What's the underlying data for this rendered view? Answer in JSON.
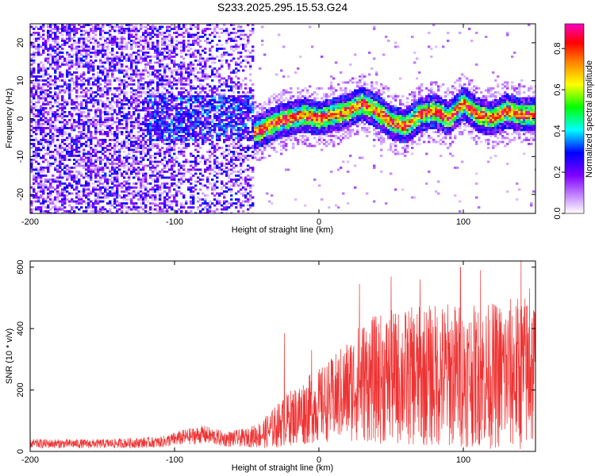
{
  "title": "S233.2025.295.15.53.G24",
  "chart_data": [
    {
      "type": "heatmap",
      "xlabel": "Height of straight line (km)",
      "ylabel": "Frequency (Hz)",
      "xlim": [
        -200,
        150
      ],
      "ylim": [
        -25,
        25
      ],
      "xticks": [
        "-200",
        "-100",
        "0",
        "100"
      ],
      "yticks": [
        "-20",
        "-10",
        "0",
        "10",
        "20"
      ],
      "colorbar": {
        "label": "Normalized spectral amplitude",
        "range": [
          0,
          0.92
        ],
        "ticks": [
          "0.0",
          "0.2",
          "0.4",
          "0.6",
          "0.8"
        ],
        "colormap": [
          "#ffffff",
          "#cc99ff",
          "#8000ff",
          "#0000ff",
          "#00ffff",
          "#00ff00",
          "#ffff00",
          "#ff8000",
          "#ff0000",
          "#ff00c0"
        ]
      },
      "ridge_trace": {
        "x": [
          -48,
          -40,
          -30,
          -20,
          -10,
          0,
          10,
          20,
          30,
          40,
          50,
          60,
          70,
          80,
          90,
          100,
          110,
          120,
          130,
          140,
          148
        ],
        "y": [
          -4,
          -3,
          -1,
          0,
          1,
          0,
          1,
          2,
          4,
          2,
          -1,
          -2,
          1,
          2,
          0,
          4,
          1,
          0,
          2,
          1,
          1
        ]
      },
      "noise_region_x": [
        -200,
        -45
      ],
      "grid": false
    },
    {
      "type": "line",
      "xlabel": "Height of straight line (km)",
      "ylabel": "SNR (10 * v/v)",
      "xlim": [
        -200,
        150
      ],
      "ylim": [
        0,
        620
      ],
      "xticks": [
        "-200",
        "-100",
        "0",
        "100"
      ],
      "yticks": [
        "0",
        "200",
        "400",
        "600"
      ],
      "series_color": "#ee3333",
      "envelope": {
        "x": [
          -200,
          -150,
          -110,
          -95,
          -80,
          -65,
          -50,
          -40,
          -30,
          -20,
          -10,
          0,
          10,
          20,
          30,
          50,
          70,
          90,
          110,
          130,
          148
        ],
        "mean": [
          25,
          25,
          30,
          45,
          55,
          40,
          45,
          55,
          80,
          110,
          130,
          150,
          170,
          200,
          230,
          240,
          245,
          250,
          245,
          250,
          260
        ],
        "amplitude": [
          15,
          15,
          18,
          25,
          30,
          25,
          30,
          45,
          70,
          90,
          110,
          120,
          140,
          170,
          200,
          220,
          230,
          240,
          230,
          250,
          260
        ]
      },
      "peaks": [
        [
          -24,
          385
        ],
        [
          -5,
          330
        ],
        [
          28,
          545
        ],
        [
          50,
          570
        ],
        [
          70,
          560
        ],
        [
          98,
          600
        ],
        [
          112,
          590
        ],
        [
          140,
          620
        ],
        [
          146,
          530
        ]
      ],
      "grid": false
    }
  ]
}
